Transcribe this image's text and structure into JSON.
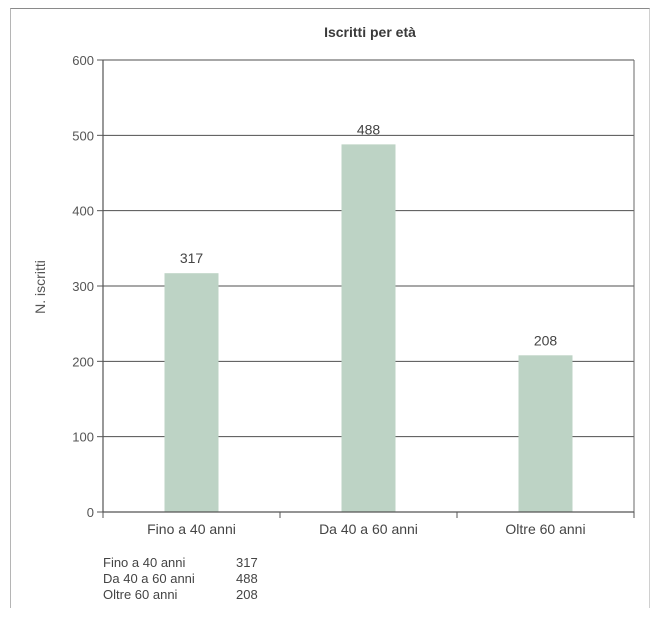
{
  "chart_data": {
    "type": "bar",
    "title": "Iscritti per età",
    "xlabel": "",
    "ylabel": "N. iscritti",
    "categories": [
      "Fino a 40 anni",
      "Da 40 a 60 anni",
      "Oltre 60 anni"
    ],
    "values": [
      317,
      488,
      208
    ],
    "ylim": [
      0,
      600
    ],
    "yticks": [
      0,
      100,
      200,
      300,
      400,
      500,
      600
    ],
    "grid": true,
    "bar_color": "#bdd3c5",
    "data_labels": [
      "317",
      "488",
      "208"
    ]
  },
  "data_table": [
    {
      "category": "Fino a 40 anni",
      "value": "317"
    },
    {
      "category": "Da 40 a 60 anni",
      "value": "488"
    },
    {
      "category": "Oltre 60 anni",
      "value": "208"
    }
  ]
}
